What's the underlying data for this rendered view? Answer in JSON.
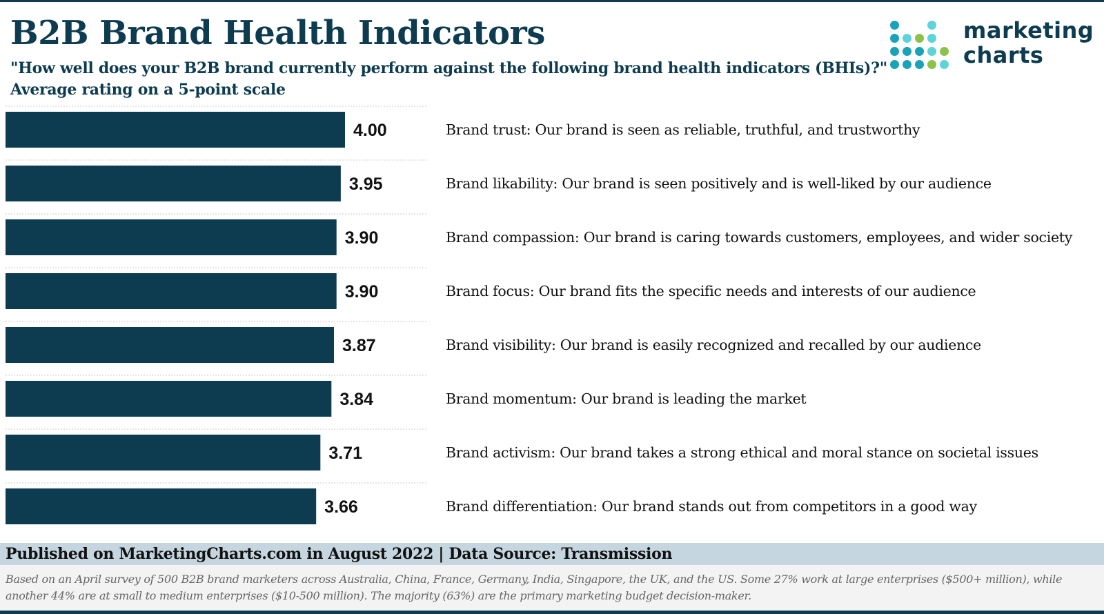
{
  "header": {
    "title": "B2B Brand Health Indicators",
    "subtitle": "\"How well does your B2B brand currently perform against the following brand health indicators (BHIs)?\"",
    "subtitle2": "Average rating on a 5-point scale"
  },
  "logo": {
    "line1": "marketing",
    "line2": "charts",
    "dot_colors": [
      "#0d3b4f",
      "#1aa3b8",
      "#5ed3d8",
      "#8bc34a"
    ]
  },
  "colors": {
    "bar": "#0d3b4f",
    "title": "#0d3b4f",
    "footer_band": "#c6d6e0"
  },
  "chart_data": {
    "type": "bar",
    "orientation": "horizontal",
    "title": "B2B Brand Health Indicators",
    "xlabel": "",
    "ylabel": "",
    "xlim": [
      0,
      5
    ],
    "grid": false,
    "categories": [
      "Brand trust: Our brand is seen as reliable, truthful, and trustworthy",
      "Brand likability: Our brand is seen positively and is well-liked by our audience",
      "Brand compassion: Our brand is caring towards customers, employees, and wider society",
      "Brand focus: Our brand fits the specific needs and interests of our audience",
      "Brand visibility: Our brand is easily recognized and recalled by our audience",
      "Brand momentum: Our brand is leading the market",
      "Brand activism: Our brand takes a strong ethical and moral stance on societal issues",
      "Brand differentiation: Our brand stands out from competitors in a good way"
    ],
    "values": [
      4.0,
      3.95,
      3.9,
      3.9,
      3.87,
      3.84,
      3.71,
      3.66
    ],
    "value_labels": [
      "4.00",
      "3.95",
      "3.90",
      "3.90",
      "3.87",
      "3.84",
      "3.71",
      "3.66"
    ]
  },
  "footer": {
    "published": "Published on MarketingCharts.com in August 2022 | Data Source: Transmission",
    "note": "Based on an April survey of 500 B2B brand marketers across Australia, China, France, Germany, India, Singapore, the UK, and the US. Some 27% work at large enterprises ($500+ million), while another 44% are at small to medium enterprises ($10-500 million). The majority (63%) are the primary marketing budget decision-maker."
  }
}
